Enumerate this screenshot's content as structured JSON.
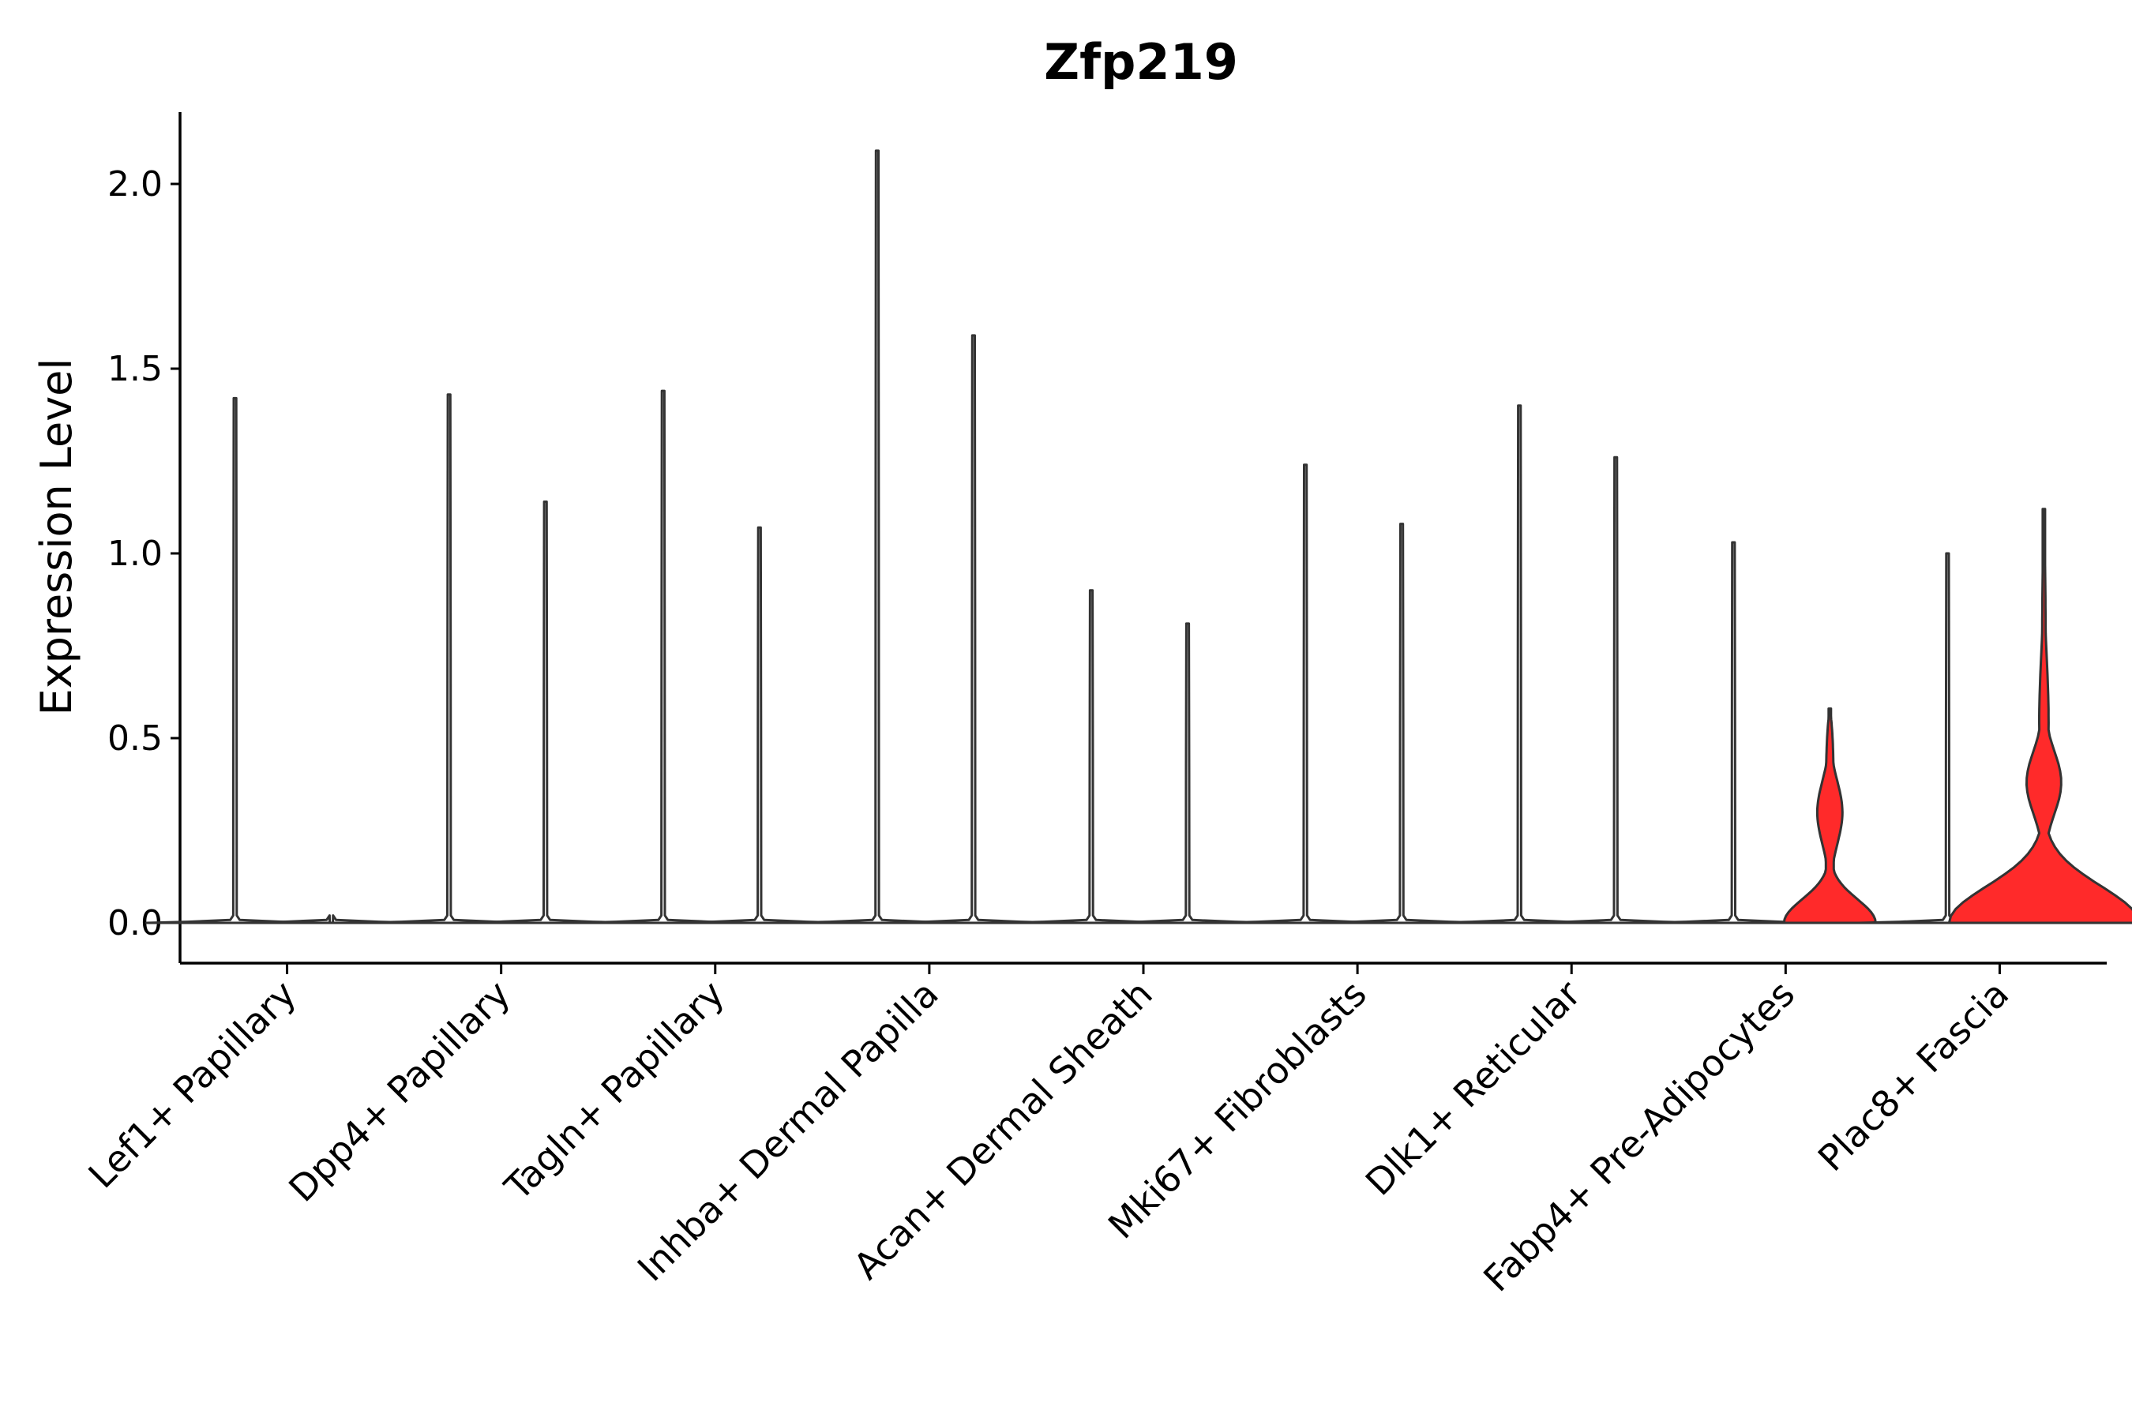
{
  "chart_data": {
    "type": "violin",
    "title": "Zfp219",
    "ylabel": "Expression Level",
    "xlabel": "",
    "ylim": [
      -0.1,
      2.2
    ],
    "yticks": [
      0.0,
      0.5,
      1.0,
      1.5,
      2.0
    ],
    "ytick_labels": [
      "0.0",
      "0.5",
      "1.0",
      "1.5",
      "2.0"
    ],
    "grid": false,
    "legend": "none",
    "colors": {
      "low": "#ffffff",
      "high": "#ff2a2a",
      "outline": "#333333"
    },
    "categories": [
      "Lef1+ Papillary",
      "Dpp4+ Papillary",
      "Tagln+ Papillary",
      "Inhba+ Dermal Papilla",
      "Acan+ Dermal Sheath",
      "Mki67+ Fibroblasts",
      "Dlk1+ Reticular",
      "Fabp4+ Pre-Adipocytes",
      "Plac8+ Fascia"
    ],
    "series": [
      {
        "values": [
          1.42,
          1.43,
          1.44,
          2.09,
          0.9,
          1.24,
          1.4,
          1.03,
          1.0
        ],
        "highlighted": [
          false,
          false,
          false,
          false,
          false,
          false,
          false,
          false,
          false
        ]
      },
      {
        "values": [
          0.0,
          1.14,
          1.07,
          1.59,
          0.81,
          1.08,
          1.26,
          0.58,
          1.12
        ],
        "highlighted": [
          false,
          false,
          false,
          false,
          false,
          false,
          false,
          true,
          true
        ]
      }
    ]
  }
}
